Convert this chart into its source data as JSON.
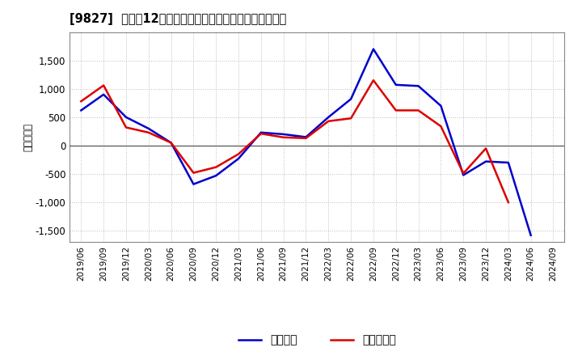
{
  "title": "[9827]  利益の12か月移動合計の対前年同期増減額の推移",
  "ylabel": "（百万円）",
  "x_labels": [
    "2019/06",
    "2019/09",
    "2019/12",
    "2020/03",
    "2020/06",
    "2020/09",
    "2020/12",
    "2021/03",
    "2021/06",
    "2021/09",
    "2021/12",
    "2022/03",
    "2022/06",
    "2022/09",
    "2022/12",
    "2023/03",
    "2023/06",
    "2023/09",
    "2023/12",
    "2024/03",
    "2024/06",
    "2024/09"
  ],
  "keijo_rieki": [
    620,
    900,
    500,
    300,
    50,
    -680,
    -530,
    -230,
    230,
    200,
    150,
    500,
    820,
    1700,
    1070,
    1050,
    700,
    -520,
    -280,
    -300,
    -1580,
    null
  ],
  "toki_jun_rieki": [
    780,
    1060,
    320,
    230,
    50,
    -480,
    -380,
    -150,
    210,
    145,
    130,
    430,
    480,
    1150,
    620,
    620,
    340,
    -490,
    -50,
    -1000,
    null,
    null
  ],
  "keijo_color": "#0000cc",
  "toki_color": "#dd0000",
  "ylim": [
    -1700,
    2000
  ],
  "yticks": [
    -1500,
    -1000,
    -500,
    0,
    500,
    1000,
    1500
  ],
  "bg_color": "#ffffff",
  "plot_bg_color": "#ffffff",
  "grid_color": "#bbbbbb",
  "legend_labels": [
    "経常利益",
    "当期純利益"
  ]
}
